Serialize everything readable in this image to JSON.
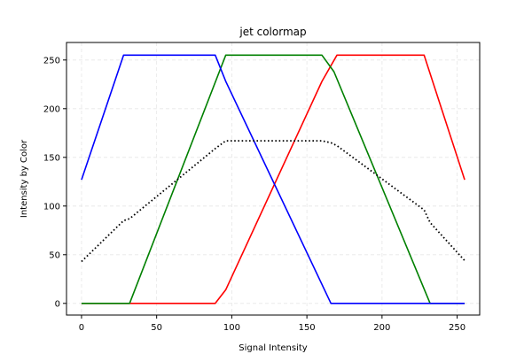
{
  "chart_data": {
    "type": "line",
    "title": "jet colormap",
    "xlabel": "Signal Intensity",
    "ylabel": "Intensity by Color",
    "xlim": [
      -10,
      265
    ],
    "ylim": [
      -12,
      268
    ],
    "xticks": [
      0,
      50,
      100,
      150,
      200,
      250
    ],
    "yticks": [
      0,
      50,
      100,
      150,
      200,
      250
    ],
    "grid": true,
    "legend": "none",
    "series": [
      {
        "color": "#ff0000",
        "style": "solid",
        "x": [
          0,
          89,
          96,
          160,
          170,
          228,
          255
        ],
        "y": [
          0,
          0,
          14,
          228,
          255,
          255,
          127
        ]
      },
      {
        "color": "#008000",
        "style": "solid",
        "x": [
          0,
          32,
          96,
          160,
          168,
          232,
          255
        ],
        "y": [
          0,
          0,
          255,
          255,
          238,
          0,
          0
        ]
      },
      {
        "color": "#0000ff",
        "style": "solid",
        "x": [
          0,
          28,
          89,
          96,
          166,
          255
        ],
        "y": [
          127,
          255,
          255,
          228,
          0,
          0
        ]
      },
      {
        "color": "#000000",
        "style": "dotted",
        "x": [
          0,
          28,
          32,
          89,
          96,
          160,
          166,
          170,
          228,
          232,
          255
        ],
        "y": [
          43,
          85,
          87,
          159,
          167,
          167,
          165,
          162,
          96,
          83,
          44
        ]
      }
    ]
  }
}
